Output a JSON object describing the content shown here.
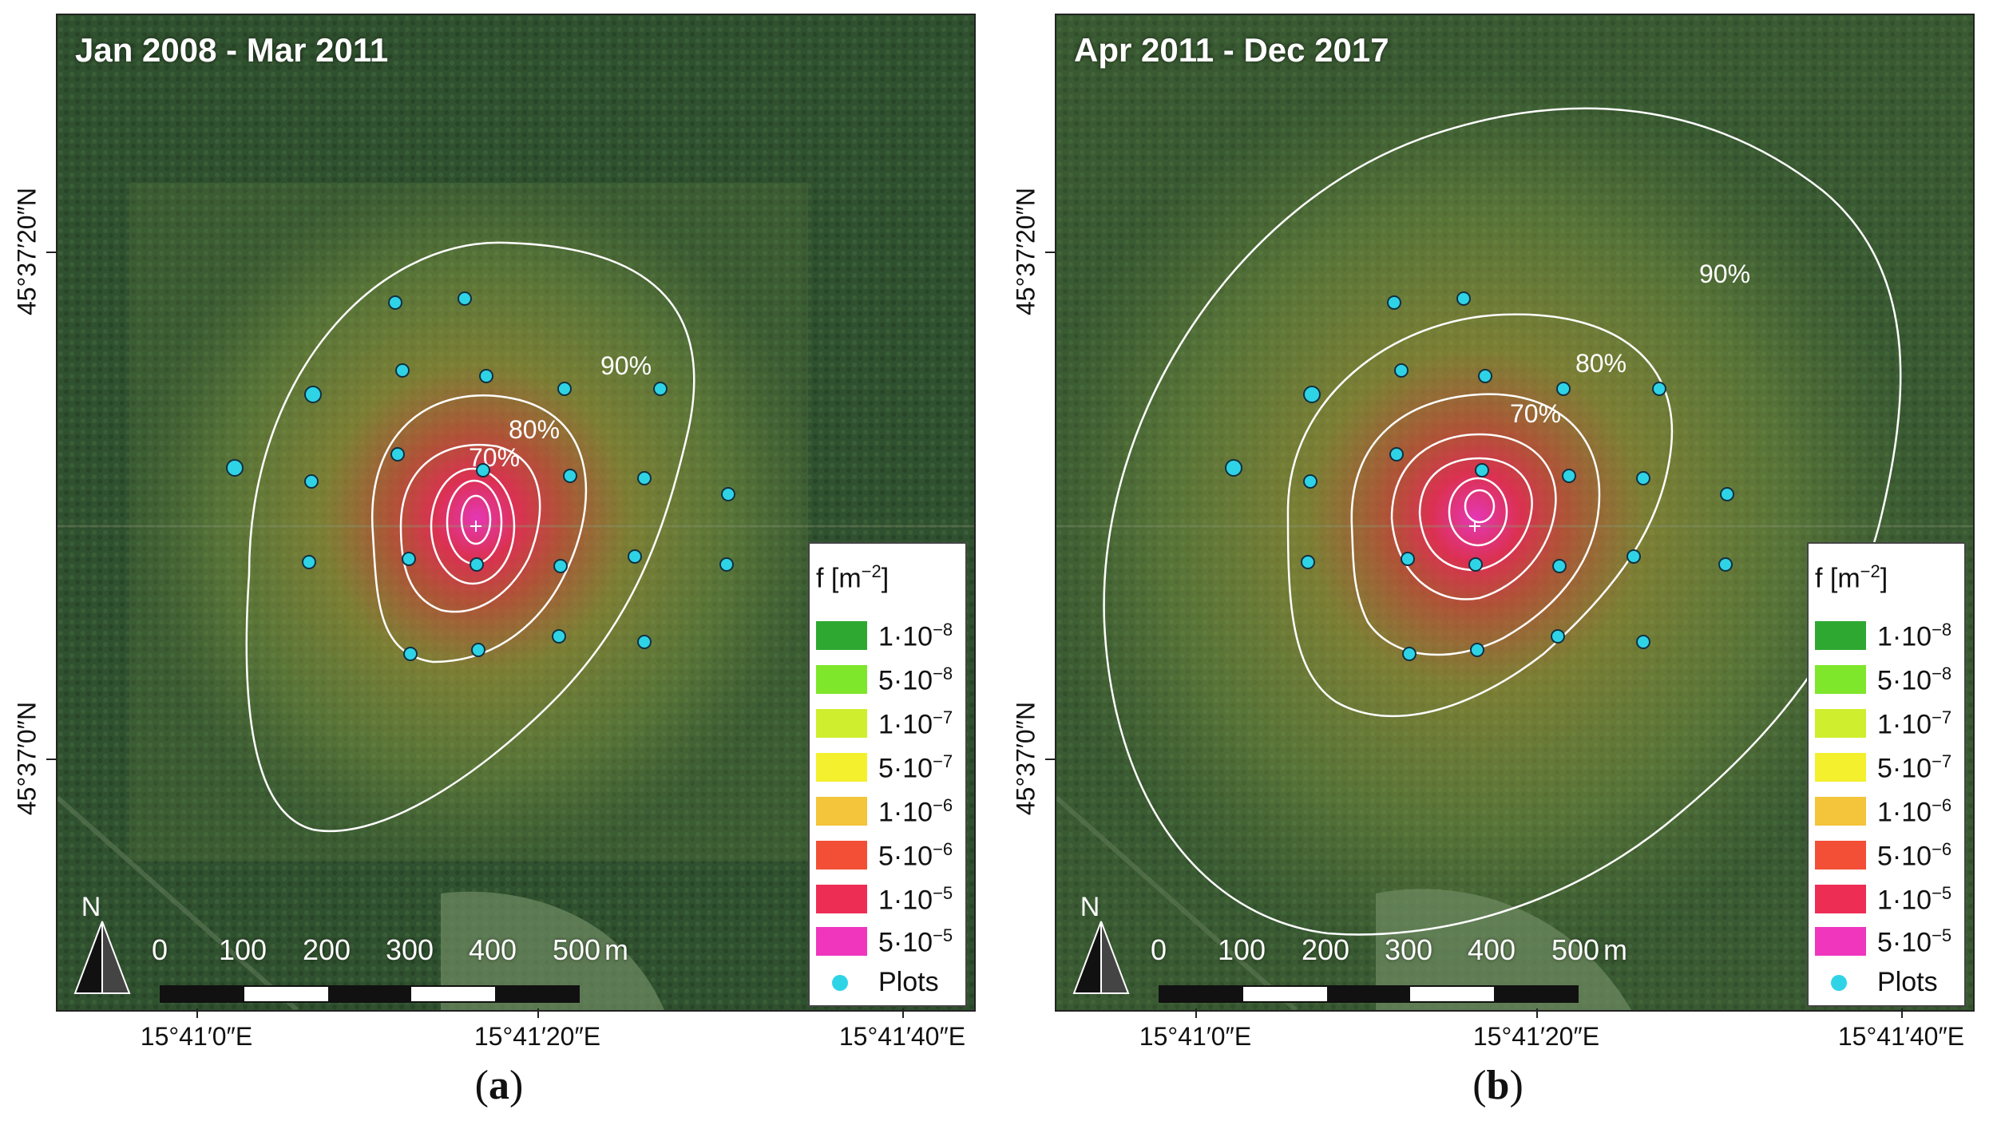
{
  "colors": {
    "plots": "#2fd3e6",
    "contour": "#ffffff",
    "legend_swatches": [
      "#2ea830",
      "#7ee62b",
      "#cfee2e",
      "#f4f02e",
      "#f4c43a",
      "#f24f36",
      "#ee2d55",
      "#ef36bd"
    ]
  },
  "legend": {
    "title": "f [m",
    "title_exp": "−2",
    "items": [
      {
        "mant": "1·10",
        "exp": "−8"
      },
      {
        "mant": "5·10",
        "exp": "−8"
      },
      {
        "mant": "1·10",
        "exp": "−7"
      },
      {
        "mant": "5·10",
        "exp": "−7"
      },
      {
        "mant": "1·10",
        "exp": "−6"
      },
      {
        "mant": "5·10",
        "exp": "−6"
      },
      {
        "mant": "1·10",
        "exp": "−5"
      },
      {
        "mant": "5·10",
        "exp": "−5"
      }
    ],
    "plots_label": "Plots",
    "title_close": "]"
  },
  "scale": {
    "ticks": [
      "0",
      "100",
      "200",
      "300",
      "400",
      "500"
    ],
    "unit": "m"
  },
  "north_label": "N",
  "lon_labels": [
    "15°41′0″E",
    "15°41′20″E",
    "15°41′40″E"
  ],
  "lat_labels": [
    "45°37′20″N",
    "45°37′0″N"
  ],
  "panels": [
    {
      "title": "Jan 2008 - Mar 2011",
      "caption": "a",
      "contours": [
        "90%",
        "80%",
        "70%"
      ]
    },
    {
      "title": "Apr 2011 - Dec 2017",
      "caption": "b",
      "contours": [
        "90%",
        "80%",
        "70%"
      ]
    }
  ]
}
